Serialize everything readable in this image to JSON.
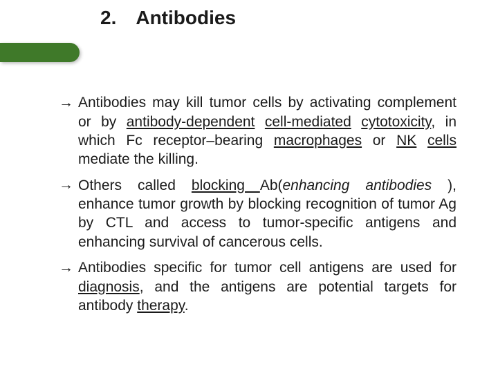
{
  "colors": {
    "accent": "#3f7929",
    "text": "#1a1a1a",
    "background": "#ffffff"
  },
  "typography": {
    "title_fontsize": 28,
    "body_fontsize": 21,
    "font_family": "Arial"
  },
  "title": {
    "number": "2.",
    "text": "Antibodies"
  },
  "arrow": "→",
  "bullets": [
    {
      "pre": "Antibodies may kill tumor cells by activating complement or by ",
      "u1": "antibody-dependent",
      "sp1": " ",
      "u2": "cell-mediated",
      "sp2": " ",
      "u3": "cytotoxicity",
      "mid1": ", in which Fc receptor–bearing ",
      "u4": "macrophages",
      "mid2": " or ",
      "u5": "NK",
      "sp3": " ",
      "u6": "cells",
      "post": " mediate the killing."
    },
    {
      "pre": "Others called ",
      "u1": "blocking ",
      "mid1": "Ab(",
      "i1": "enhancing antibodies ",
      "post": "), enhance tumor growth by blocking recognition of tumor Ag by CTL and access to tumor-specific antigens and enhancing survival of cancerous cells."
    },
    {
      "pre": "Antibodies specific for tumor cell antigens are used for ",
      "u1": "diagnosis",
      "mid1": ", and the antigens are potential targets for antibody ",
      "u2": "therapy",
      "post": "."
    }
  ]
}
